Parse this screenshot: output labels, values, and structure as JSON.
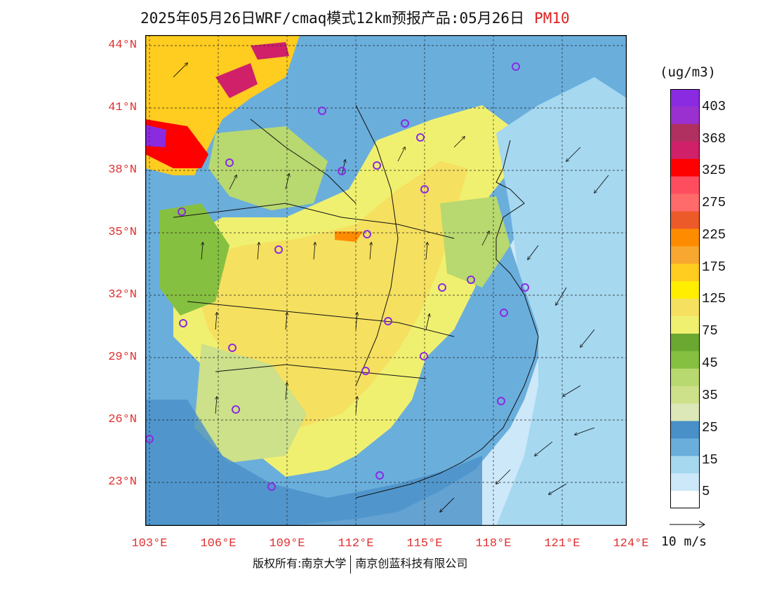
{
  "title": {
    "main": "2025年05月26日WRF/cmaq模式12km预报产品:05月26日",
    "product": "PM10"
  },
  "map": {
    "lat_labels": [
      "44°N",
      "41°N",
      "38°N",
      "35°N",
      "32°N",
      "29°N",
      "26°N",
      "23°N"
    ],
    "lon_labels": [
      "103°E",
      "106°E",
      "109°E",
      "112°E",
      "115°E",
      "118°E",
      "121°E",
      "124°E"
    ],
    "grid": true
  },
  "colorbar": {
    "unit": "(ug/m3)",
    "labels": [
      "403",
      "368",
      "325",
      "275",
      "225",
      "175",
      "125",
      "75",
      "45",
      "35",
      "25",
      "15",
      "5"
    ],
    "colors": [
      "#8a2be2",
      "#9b30d0",
      "#b03060",
      "#d0206a",
      "#ff0000",
      "#ff4d60",
      "#ff6a6a",
      "#ec5a2a",
      "#ff8c00",
      "#f8a830",
      "#ffcc20",
      "#ffee00",
      "#f5e060",
      "#f0f070",
      "#6aa832",
      "#86c040",
      "#b8d870",
      "#cde08a",
      "#dde8b8",
      "#4a90c8",
      "#6aaedc",
      "#a6d8f0",
      "#cde8f8",
      "#ffffff"
    ]
  },
  "wind_reference": "10 m/s",
  "footer": {
    "left": "版权所有:南京大学",
    "right": "南京创蓝科技有限公司"
  },
  "colors": {
    "label_red": "#e03030",
    "background_sea": "#cde8f8"
  }
}
